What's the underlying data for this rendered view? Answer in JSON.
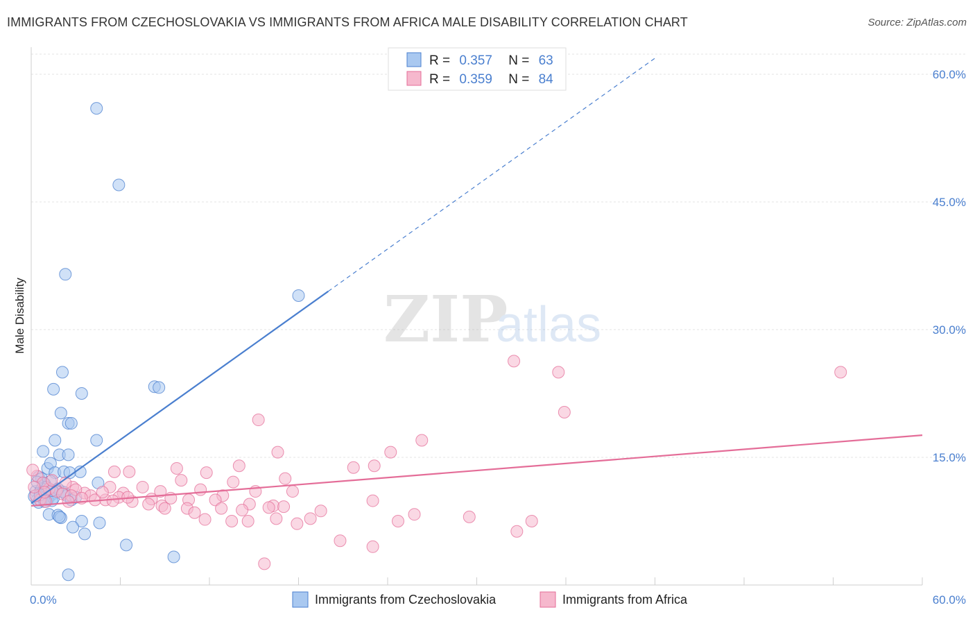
{
  "title": "IMMIGRANTS FROM CZECHOSLOVAKIA VS IMMIGRANTS FROM AFRICA MALE DISABILITY CORRELATION CHART",
  "source": "Source: ZipAtlas.com",
  "watermark": {
    "zip": "ZIP",
    "atlas": "atlas"
  },
  "colors": {
    "blue": "#4a7fcf",
    "blue_fill": "#a9c8f0",
    "pink": "#e46d98",
    "pink_fill": "#f6b8cd",
    "grid": "#e3e3e3",
    "axis_text": "#4a7fcf"
  },
  "legend": {
    "rows": [
      {
        "r_label": "R =",
        "r_value": "0.357",
        "n_label": "N =",
        "n_value": "63",
        "color": "#4a7fcf"
      },
      {
        "r_label": "R =",
        "r_value": "0.359",
        "n_label": "N =",
        "n_value": "84",
        "color": "#e46d98"
      }
    ]
  },
  "chart_data": {
    "type": "scatter",
    "title": "IMMIGRANTS FROM CZECHOSLOVAKIA VS IMMIGRANTS FROM AFRICA MALE DISABILITY CORRELATION CHART",
    "xlabel": "",
    "ylabel": "Male Disability",
    "xlim": [
      0,
      60
    ],
    "ylim": [
      0,
      62
    ],
    "x_tick_labels": [
      "0.0%",
      "60.0%"
    ],
    "y_ticks": [
      15,
      30,
      45,
      60
    ],
    "y_tick_labels": [
      "15.0%",
      "30.0%",
      "45.0%",
      "60.0%"
    ],
    "grid": true,
    "legend_position": "bottom-center",
    "series": [
      {
        "name": "Immigrants from Czechoslovakia",
        "color": "#4a7fcf",
        "r": 0.357,
        "n": 63,
        "trend": {
          "x0": 0,
          "y0": 9.6,
          "x1": 20,
          "y1": 34.5,
          "dashed_to_x": 42
        },
        "points": [
          [
            4.4,
            56.0
          ],
          [
            5.9,
            47.0
          ],
          [
            2.3,
            36.5
          ],
          [
            18.0,
            34.0
          ],
          [
            2.1,
            25.0
          ],
          [
            1.5,
            23.0
          ],
          [
            3.4,
            22.5
          ],
          [
            8.3,
            23.3
          ],
          [
            8.6,
            23.2
          ],
          [
            2.0,
            20.2
          ],
          [
            2.5,
            19.0
          ],
          [
            2.7,
            19.0
          ],
          [
            1.6,
            17.0
          ],
          [
            4.4,
            17.0
          ],
          [
            0.8,
            15.7
          ],
          [
            1.9,
            15.3
          ],
          [
            2.5,
            15.3
          ],
          [
            1.1,
            13.7
          ],
          [
            1.3,
            14.3
          ],
          [
            1.6,
            13.2
          ],
          [
            2.2,
            13.3
          ],
          [
            3.3,
            13.3
          ],
          [
            2.6,
            13.2
          ],
          [
            0.5,
            12.7
          ],
          [
            0.7,
            12.5
          ],
          [
            1.3,
            12.2
          ],
          [
            0.9,
            11.9
          ],
          [
            2.0,
            11.0
          ],
          [
            4.5,
            12.0
          ],
          [
            0.3,
            11.0
          ],
          [
            0.6,
            11.0
          ],
          [
            1.0,
            10.8
          ],
          [
            1.3,
            10.5
          ],
          [
            1.6,
            10.8
          ],
          [
            2.4,
            10.5
          ],
          [
            0.4,
            10.0
          ],
          [
            0.8,
            10.2
          ],
          [
            1.1,
            10.0
          ],
          [
            1.4,
            9.9
          ],
          [
            2.7,
            10.0
          ],
          [
            0.2,
            10.4
          ],
          [
            0.5,
            9.7
          ],
          [
            1.2,
            8.3
          ],
          [
            1.8,
            8.2
          ],
          [
            2.0,
            7.9
          ],
          [
            1.9,
            8.0
          ],
          [
            3.4,
            7.5
          ],
          [
            2.8,
            6.8
          ],
          [
            3.6,
            6.0
          ],
          [
            4.6,
            7.3
          ],
          [
            6.4,
            4.7
          ],
          [
            9.6,
            3.3
          ],
          [
            2.5,
            1.2
          ],
          [
            0.7,
            11.3
          ],
          [
            1.0,
            11.5
          ],
          [
            0.4,
            12.1
          ],
          [
            1.5,
            10.2
          ],
          [
            2.2,
            10.9
          ],
          [
            0.9,
            9.8
          ],
          [
            1.8,
            11.3
          ],
          [
            3.0,
            10.3
          ],
          [
            0.6,
            10.6
          ],
          [
            1.4,
            11.1
          ]
        ]
      },
      {
        "name": "Immigrants from Africa",
        "color": "#e46d98",
        "r": 0.359,
        "n": 84,
        "trend": {
          "x0": 0,
          "y0": 9.3,
          "x1": 60,
          "y1": 17.6
        },
        "points": [
          [
            32.5,
            26.3
          ],
          [
            35.5,
            25.0
          ],
          [
            54.5,
            25.0
          ],
          [
            35.9,
            20.3
          ],
          [
            15.3,
            19.4
          ],
          [
            26.3,
            17.0
          ],
          [
            16.6,
            15.6
          ],
          [
            24.2,
            15.6
          ],
          [
            14.0,
            14.0
          ],
          [
            21.7,
            13.8
          ],
          [
            23.1,
            14.0
          ],
          [
            9.8,
            13.7
          ],
          [
            5.6,
            13.3
          ],
          [
            6.6,
            13.3
          ],
          [
            11.8,
            13.2
          ],
          [
            5.3,
            11.5
          ],
          [
            2.8,
            11.5
          ],
          [
            17.1,
            12.5
          ],
          [
            10.1,
            12.3
          ],
          [
            13.6,
            12.1
          ],
          [
            7.5,
            11.5
          ],
          [
            11.4,
            11.2
          ],
          [
            8.7,
            11.0
          ],
          [
            6.2,
            10.8
          ],
          [
            3.6,
            10.8
          ],
          [
            4.0,
            10.5
          ],
          [
            12.9,
            10.5
          ],
          [
            17.6,
            11.0
          ],
          [
            15.1,
            11.0
          ],
          [
            3.0,
            11.2
          ],
          [
            1.2,
            11.3
          ],
          [
            1.7,
            11.0
          ],
          [
            2.1,
            10.7
          ],
          [
            2.7,
            10.5
          ],
          [
            3.4,
            10.2
          ],
          [
            4.3,
            10.0
          ],
          [
            5.0,
            10.0
          ],
          [
            5.9,
            10.3
          ],
          [
            6.8,
            9.8
          ],
          [
            8.1,
            10.1
          ],
          [
            9.4,
            10.2
          ],
          [
            10.6,
            10.0
          ],
          [
            12.4,
            10.0
          ],
          [
            14.7,
            9.5
          ],
          [
            16.3,
            9.3
          ],
          [
            23.0,
            9.9
          ],
          [
            8.8,
            9.3
          ],
          [
            7.9,
            9.5
          ],
          [
            9.0,
            9.0
          ],
          [
            10.5,
            9.0
          ],
          [
            11.0,
            8.5
          ],
          [
            12.8,
            9.0
          ],
          [
            14.2,
            8.8
          ],
          [
            16.0,
            9.1
          ],
          [
            17.0,
            9.2
          ],
          [
            19.5,
            8.7
          ],
          [
            25.8,
            8.3
          ],
          [
            29.5,
            8.0
          ],
          [
            11.7,
            7.7
          ],
          [
            13.5,
            7.5
          ],
          [
            14.6,
            7.5
          ],
          [
            16.5,
            7.8
          ],
          [
            18.8,
            7.8
          ],
          [
            17.9,
            7.2
          ],
          [
            24.7,
            7.5
          ],
          [
            33.7,
            7.5
          ],
          [
            32.7,
            6.3
          ],
          [
            20.8,
            5.2
          ],
          [
            23.0,
            4.5
          ],
          [
            15.7,
            2.5
          ],
          [
            0.4,
            12.8
          ],
          [
            0.8,
            12.0
          ],
          [
            1.4,
            12.3
          ],
          [
            2.3,
            12.0
          ],
          [
            0.6,
            10.0
          ],
          [
            1.0,
            9.8
          ],
          [
            0.3,
            10.5
          ],
          [
            0.1,
            13.5
          ],
          [
            0.2,
            11.5
          ],
          [
            0.9,
            10.9
          ],
          [
            2.5,
            9.8
          ],
          [
            4.8,
            10.9
          ],
          [
            6.5,
            10.3
          ],
          [
            5.5,
            9.9
          ]
        ]
      }
    ]
  },
  "bottom_legend": {
    "items": [
      {
        "label": "Immigrants from Czechoslovakia"
      },
      {
        "label": "Immigrants from Africa"
      }
    ]
  }
}
